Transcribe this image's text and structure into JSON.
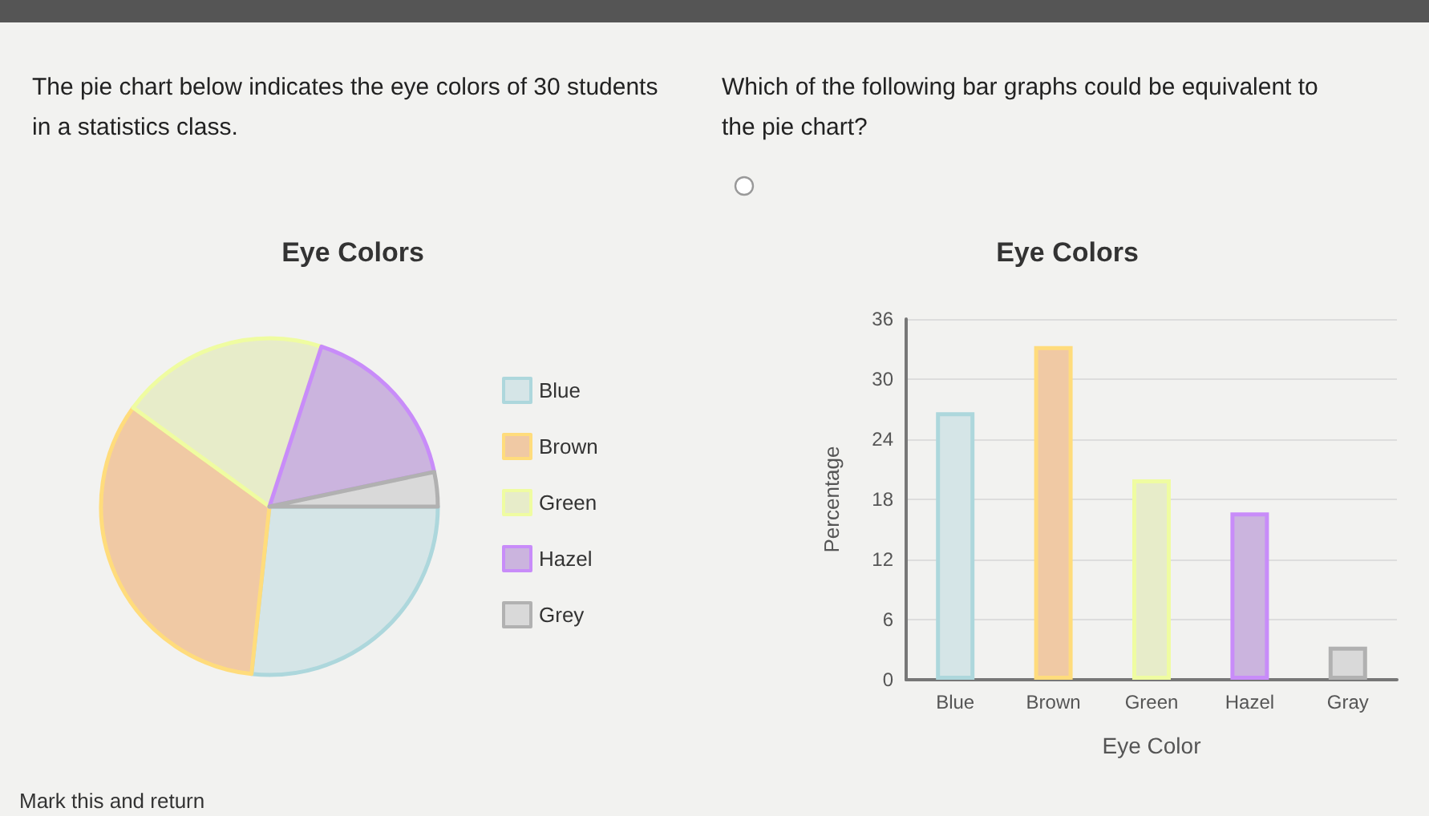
{
  "chart_data": [
    {
      "type": "pie",
      "title": "Eye Colors",
      "categories": [
        "Blue",
        "Brown",
        "Green",
        "Hazel",
        "Grey"
      ],
      "values": [
        26.7,
        33.3,
        20,
        16.7,
        3.3
      ],
      "colors": [
        "#d5e5e7",
        "#f0c9a4",
        "#e7ecc9",
        "#cbb4de",
        "#d9d9d9"
      ],
      "legend": "right",
      "annotations": [
        "The pie chart below indicates the eye colors of 30 students in a statistics class.",
        "Mark this and return"
      ]
    },
    {
      "type": "bar",
      "title": "Eye Colors",
      "xlabel": "Eye Color",
      "ylabel": "Percentage",
      "categories": [
        "Blue",
        "Brown",
        "Green",
        "Hazel",
        "Gray"
      ],
      "values": [
        26.7,
        33.3,
        20,
        16.7,
        3.3
      ],
      "colors": [
        "#d5e5e7",
        "#f0c9a4",
        "#e7ecc9",
        "#cbb4de",
        "#d9d9d9"
      ],
      "ylim": [
        0,
        36
      ],
      "yticks": [
        0,
        6,
        12,
        18,
        24,
        30,
        36
      ],
      "grid": "y",
      "annotations": [
        "Which of the following bar graphs could be equivalent to the pie chart?"
      ]
    }
  ]
}
